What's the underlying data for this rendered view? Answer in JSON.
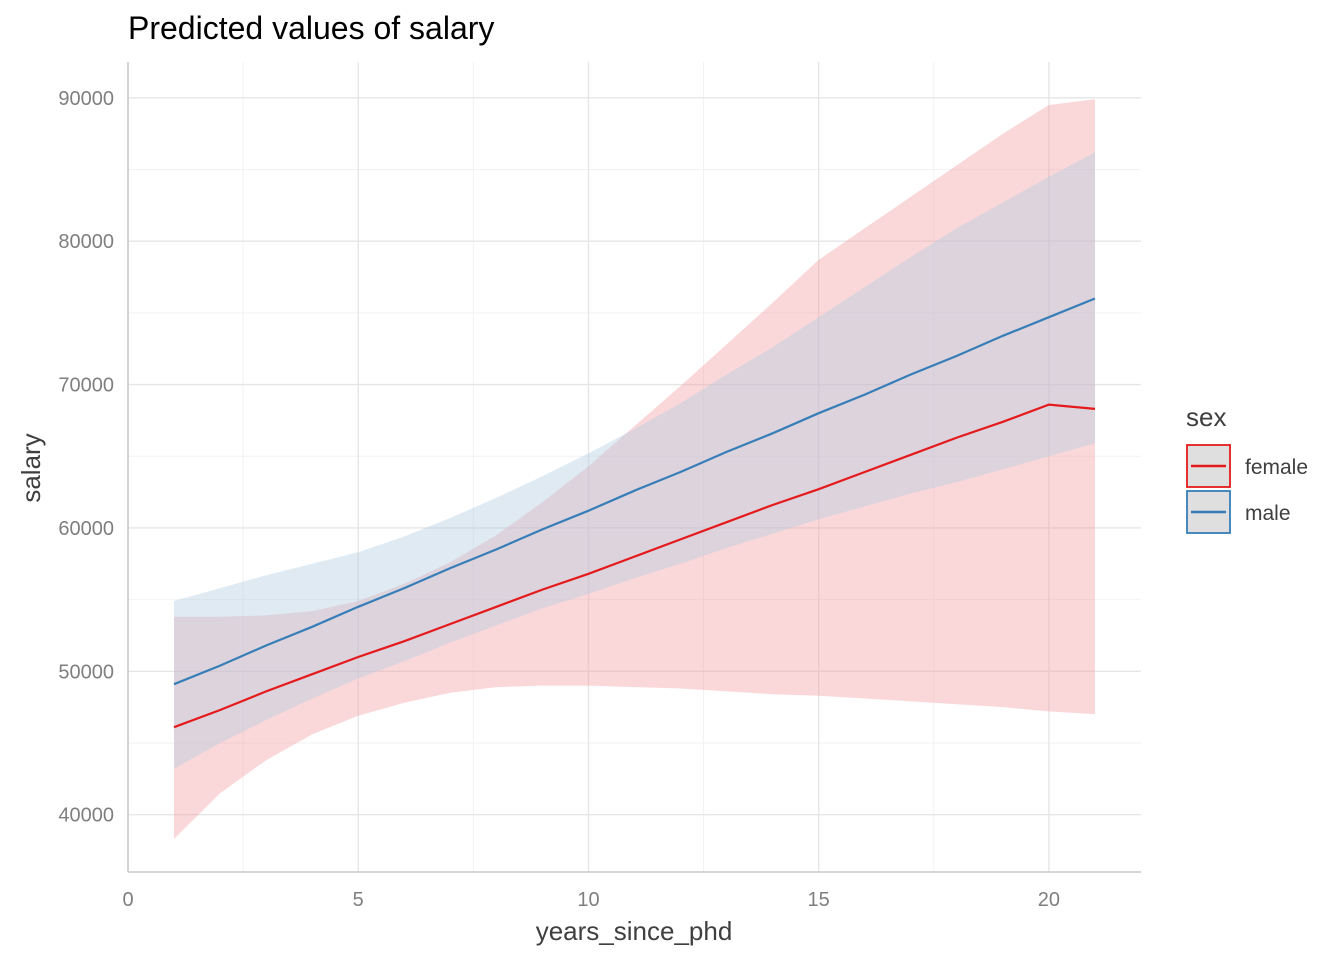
{
  "chart_data": {
    "type": "line",
    "title": "Predicted values of salary",
    "xlabel": "years_since_phd",
    "ylabel": "salary",
    "xlim": [
      0,
      22
    ],
    "ylim": [
      36000,
      92500
    ],
    "x_ticks": [
      0,
      5,
      10,
      15,
      20
    ],
    "x_tick_labels": [
      "0",
      "5",
      "10",
      "15",
      "20"
    ],
    "x_minor_ticks": [
      2.5,
      7.5,
      12.5,
      17.5
    ],
    "y_ticks": [
      40000,
      50000,
      60000,
      70000,
      80000,
      90000
    ],
    "y_tick_labels": [
      "40000",
      "50000",
      "60000",
      "70000",
      "80000",
      "90000"
    ],
    "y_minor_ticks": [
      45000,
      55000,
      65000,
      75000,
      85000
    ],
    "grid": true,
    "legend": {
      "title": "sex",
      "position": "right"
    },
    "series": [
      {
        "name": "female",
        "color": "#e41a1c",
        "band_color": "#f4a3a8",
        "x": [
          1,
          2,
          3,
          4,
          5,
          6,
          7,
          8,
          9,
          10,
          11,
          12,
          13,
          14,
          15,
          16,
          17,
          18,
          19,
          20,
          21
        ],
        "predicted": [
          46100,
          47300,
          48600,
          49800,
          51000,
          52100,
          53300,
          54500,
          55700,
          56800,
          58000,
          59200,
          60400,
          61600,
          62700,
          63900,
          65100,
          66300,
          67400,
          68600,
          68300
        ],
        "ci_low": [
          38300,
          41500,
          43800,
          45600,
          46900,
          47800,
          48500,
          48900,
          49000,
          49000,
          48900,
          48800,
          48600,
          48400,
          48300,
          48100,
          47900,
          47700,
          47500,
          47200,
          47000
        ],
        "ci_high": [
          53800,
          53800,
          53900,
          54200,
          54900,
          56100,
          57600,
          59500,
          61800,
          64300,
          67100,
          69900,
          72800,
          75700,
          78700,
          80900,
          83100,
          85300,
          87500,
          89500,
          89900
        ]
      },
      {
        "name": "male",
        "color": "#377eb8",
        "band_color": "#b3cde3",
        "x": [
          1,
          2,
          3,
          4,
          5,
          6,
          7,
          8,
          9,
          10,
          11,
          12,
          13,
          14,
          15,
          16,
          17,
          18,
          19,
          20,
          21
        ],
        "predicted": [
          49100,
          50400,
          51800,
          53100,
          54500,
          55800,
          57200,
          58500,
          59900,
          61200,
          62600,
          63900,
          65300,
          66600,
          68000,
          69300,
          70700,
          72000,
          73400,
          74700,
          76000
        ],
        "ci_low": [
          43200,
          45000,
          46600,
          48100,
          49500,
          50700,
          52000,
          53200,
          54400,
          55400,
          56500,
          57500,
          58600,
          59600,
          60600,
          61500,
          62400,
          63200,
          64100,
          65000,
          65900
        ],
        "ci_high": [
          54900,
          55800,
          56700,
          57500,
          58300,
          59400,
          60700,
          62100,
          63600,
          65200,
          66900,
          68700,
          70700,
          72600,
          74700,
          76800,
          78900,
          80900,
          82700,
          84500,
          86200
        ]
      }
    ]
  }
}
